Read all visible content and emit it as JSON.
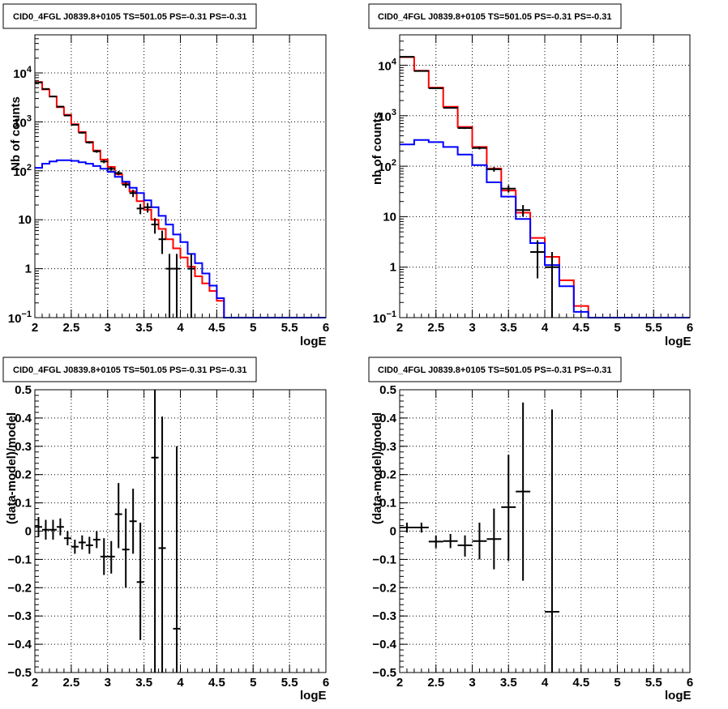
{
  "colors": {
    "data": "#000000",
    "total_model": "#ff0000",
    "background_model": "#0000ff",
    "grid": "#000000",
    "frame": "#000000"
  },
  "chart_data": [
    {
      "type": "line",
      "title": "CID0_4FGL J0839.8+0105 TS=501.05 PS=-0.31 PS=-0.31",
      "xlabel": "logE",
      "ylabel": "Nb of counts",
      "xlim": [
        2,
        6
      ],
      "ylim": [
        0.1,
        60000
      ],
      "yscale": "log",
      "grid": true,
      "x_ticks": [
        "2",
        "2.5",
        "3",
        "3.5",
        "4",
        "4.5",
        "5",
        "5.5",
        "6"
      ],
      "y_ticks": [
        {
          "value": 10000,
          "label": "10",
          "exp": "4"
        },
        {
          "value": 1000,
          "label": "10",
          "exp": "3"
        },
        {
          "value": 100,
          "label": "10",
          "exp": "2"
        },
        {
          "value": 10,
          "label": "10",
          "exp": ""
        },
        {
          "value": 1,
          "label": "1",
          "exp": ""
        },
        {
          "value": 0.1,
          "label": "10",
          "exp": "−1"
        }
      ],
      "bin_edges": [
        2.0,
        2.1,
        2.2,
        2.3,
        2.4,
        2.5,
        2.6,
        2.7,
        2.8,
        2.9,
        3.0,
        3.1,
        3.2,
        3.3,
        3.4,
        3.5,
        3.6,
        3.7,
        3.8,
        3.9,
        4.0,
        4.1,
        4.2,
        4.3,
        4.4,
        4.5,
        4.6,
        4.7,
        4.8,
        4.9,
        5.0,
        5.1,
        5.2,
        5.3,
        5.4,
        5.5,
        5.6,
        5.7,
        5.8,
        5.9,
        6.0
      ],
      "series": [
        {
          "name": "total_model",
          "kind": "step",
          "values": [
            6500,
            4600,
            3300,
            2000,
            1400,
            900,
            620,
            390,
            260,
            170,
            120,
            85,
            55,
            38,
            24,
            16,
            10,
            6.5,
            4,
            2.6,
            1.7,
            1.1,
            0.7,
            0.5,
            0.35,
            0.22,
            0.1,
            0.1,
            0.1,
            0.1,
            0.1,
            0.1,
            0.1,
            0.1,
            0.1,
            0.1,
            0.1,
            0.1,
            0.1,
            0.1
          ]
        },
        {
          "name": "background_model",
          "kind": "step",
          "values": [
            115,
            140,
            155,
            165,
            165,
            160,
            150,
            140,
            125,
            110,
            95,
            75,
            60,
            45,
            35,
            25,
            18,
            12,
            8,
            5,
            3.5,
            2,
            1.3,
            0.8,
            0.45,
            0.25,
            0.1,
            0.1,
            0.1,
            0.1,
            0.1,
            0.1,
            0.1,
            0.1,
            0.1,
            0.1,
            0.1,
            0.1,
            0.1,
            0.1
          ]
        },
        {
          "name": "data",
          "kind": "errorbar",
          "xerr": 0.05,
          "points": [
            {
              "x": 2.05,
              "y": 6400,
              "lo": 6320,
              "hi": 6480
            },
            {
              "x": 2.15,
              "y": 4700,
              "lo": 4630,
              "hi": 4770
            },
            {
              "x": 2.25,
              "y": 3300,
              "lo": 3240,
              "hi": 3360
            },
            {
              "x": 2.35,
              "y": 2050,
              "lo": 2000,
              "hi": 2100
            },
            {
              "x": 2.45,
              "y": 1350,
              "lo": 1310,
              "hi": 1390
            },
            {
              "x": 2.55,
              "y": 870,
              "lo": 840,
              "hi": 900
            },
            {
              "x": 2.65,
              "y": 600,
              "lo": 575,
              "hi": 625
            },
            {
              "x": 2.75,
              "y": 380,
              "lo": 360,
              "hi": 400
            },
            {
              "x": 2.85,
              "y": 250,
              "lo": 234,
              "hi": 266
            },
            {
              "x": 2.95,
              "y": 155,
              "lo": 143,
              "hi": 167
            },
            {
              "x": 3.05,
              "y": 110,
              "lo": 100,
              "hi": 120
            },
            {
              "x": 3.15,
              "y": 90,
              "lo": 81,
              "hi": 99
            },
            {
              "x": 3.25,
              "y": 52,
              "lo": 45,
              "hi": 59
            },
            {
              "x": 3.35,
              "y": 35,
              "lo": 29,
              "hi": 41
            },
            {
              "x": 3.45,
              "y": 17,
              "lo": 13,
              "hi": 21
            },
            {
              "x": 3.55,
              "y": 18,
              "lo": 14,
              "hi": 22
            },
            {
              "x": 3.65,
              "y": 8,
              "lo": 5.2,
              "hi": 10.8
            },
            {
              "x": 3.75,
              "y": 4,
              "lo": 2,
              "hi": 6
            },
            {
              "x": 3.85,
              "y": 1,
              "lo": 0.1,
              "hi": 2
            },
            {
              "x": 3.95,
              "y": 1,
              "lo": 0.1,
              "hi": 2
            },
            {
              "x": 4.15,
              "y": 1,
              "lo": 0.1,
              "hi": 2
            }
          ]
        }
      ]
    },
    {
      "type": "line",
      "title": "CID0_4FGL J0839.8+0105 TS=501.05 PS=-0.31 PS=-0.31",
      "xlabel": "logE",
      "ylabel": "nb of counts",
      "xlim": [
        2,
        6
      ],
      "ylim": [
        0.1,
        40000
      ],
      "yscale": "log",
      "grid": true,
      "x_ticks": [
        "2",
        "2.5",
        "3",
        "3.5",
        "4",
        "4.5",
        "5",
        "5.5",
        "6"
      ],
      "y_ticks": [
        {
          "value": 10000,
          "label": "10",
          "exp": "4"
        },
        {
          "value": 1000,
          "label": "10",
          "exp": "3"
        },
        {
          "value": 100,
          "label": "10",
          "exp": "2"
        },
        {
          "value": 10,
          "label": "10",
          "exp": ""
        },
        {
          "value": 1,
          "label": "1",
          "exp": ""
        },
        {
          "value": 0.1,
          "label": "10",
          "exp": "−1"
        }
      ],
      "bin_edges": [
        2.0,
        2.2,
        2.4,
        2.6,
        2.8,
        3.0,
        3.2,
        3.4,
        3.6,
        3.8,
        4.0,
        4.2,
        4.4,
        4.6,
        4.8,
        5.0,
        5.2,
        5.4,
        5.6,
        5.8,
        6.0
      ],
      "series": [
        {
          "name": "total_model",
          "kind": "step",
          "values": [
            14500,
            7800,
            3600,
            1500,
            600,
            240,
            90,
            33,
            12,
            3.8,
            1.6,
            0.55,
            0.17,
            0.1,
            0.1,
            0.1,
            0.1,
            0.1,
            0.1,
            0.1
          ]
        },
        {
          "name": "background_model",
          "kind": "step",
          "values": [
            270,
            330,
            300,
            240,
            170,
            105,
            48,
            25,
            9,
            3,
            1.1,
            0.42,
            0.13,
            0.1,
            0.1,
            0.1,
            0.1,
            0.1,
            0.1,
            0.1
          ]
        },
        {
          "name": "data",
          "kind": "errorbar",
          "xerr": 0.1,
          "points": [
            {
              "x": 2.1,
              "y": 14700,
              "lo": 14550,
              "hi": 14850
            },
            {
              "x": 2.3,
              "y": 7700,
              "lo": 7610,
              "hi": 7790
            },
            {
              "x": 2.5,
              "y": 3500,
              "lo": 3440,
              "hi": 3560
            },
            {
              "x": 2.7,
              "y": 1430,
              "lo": 1390,
              "hi": 1470
            },
            {
              "x": 2.9,
              "y": 570,
              "lo": 546,
              "hi": 594
            },
            {
              "x": 3.1,
              "y": 230,
              "lo": 215,
              "hi": 245
            },
            {
              "x": 3.3,
              "y": 87,
              "lo": 78,
              "hi": 96
            },
            {
              "x": 3.5,
              "y": 36,
              "lo": 30,
              "hi": 42
            },
            {
              "x": 3.7,
              "y": 13.5,
              "lo": 10,
              "hi": 17
            },
            {
              "x": 3.9,
              "y": 2,
              "lo": 0.6,
              "hi": 3.4
            },
            {
              "x": 4.1,
              "y": 1,
              "lo": 0.1,
              "hi": 2
            }
          ]
        }
      ]
    },
    {
      "type": "scatter",
      "title": "CID0_4FGL J0839.8+0105 TS=501.05 PS=-0.31 PS=-0.31",
      "xlabel": "logE",
      "ylabel": "(data-model)/model",
      "xlim": [
        2,
        6
      ],
      "ylim": [
        -0.5,
        0.5
      ],
      "grid": true,
      "x_ticks": [
        "2",
        "2.5",
        "3",
        "3.5",
        "4",
        "4.5",
        "5",
        "5.5",
        "6"
      ],
      "y_ticks": [
        {
          "value": 0.5,
          "label": "0.5"
        },
        {
          "value": 0.4,
          "label": "0.4"
        },
        {
          "value": 0.3,
          "label": "0.3"
        },
        {
          "value": 0.2,
          "label": "0.2"
        },
        {
          "value": 0.1,
          "label": "0.1"
        },
        {
          "value": 0,
          "label": "0"
        },
        {
          "value": -0.1,
          "label": "−0.1"
        },
        {
          "value": -0.2,
          "label": "−0.2"
        },
        {
          "value": -0.3,
          "label": "−0.3"
        },
        {
          "value": -0.4,
          "label": "−0.4"
        },
        {
          "value": -0.5,
          "label": "−0.5"
        }
      ],
      "series": [
        {
          "name": "residuals",
          "kind": "errorbar",
          "xerr": 0.05,
          "points": [
            {
              "x": 2.05,
              "y": 0.015,
              "lo": -0.02,
              "hi": 0.05
            },
            {
              "x": 2.15,
              "y": 0.005,
              "lo": -0.03,
              "hi": 0.04
            },
            {
              "x": 2.25,
              "y": 0.005,
              "lo": -0.03,
              "hi": 0.04
            },
            {
              "x": 2.35,
              "y": 0.015,
              "lo": -0.015,
              "hi": 0.045
            },
            {
              "x": 2.45,
              "y": -0.025,
              "lo": -0.05,
              "hi": 0.0
            },
            {
              "x": 2.55,
              "y": -0.055,
              "lo": -0.08,
              "hi": -0.03
            },
            {
              "x": 2.65,
              "y": -0.04,
              "lo": -0.065,
              "hi": -0.015
            },
            {
              "x": 2.75,
              "y": -0.05,
              "lo": -0.08,
              "hi": -0.02
            },
            {
              "x": 2.85,
              "y": -0.03,
              "lo": -0.06,
              "hi": 0.0
            },
            {
              "x": 2.95,
              "y": -0.09,
              "lo": -0.155,
              "hi": -0.025
            },
            {
              "x": 3.05,
              "y": -0.09,
              "lo": -0.15,
              "hi": -0.035
            },
            {
              "x": 3.15,
              "y": 0.06,
              "lo": -0.06,
              "hi": 0.17
            },
            {
              "x": 3.25,
              "y": -0.065,
              "lo": -0.2,
              "hi": 0.08
            },
            {
              "x": 3.35,
              "y": 0.035,
              "lo": -0.08,
              "hi": 0.15
            },
            {
              "x": 3.45,
              "y": -0.18,
              "lo": -0.385,
              "hi": 0.03
            },
            {
              "x": 3.65,
              "y": 0.26,
              "lo": -0.5,
              "hi": 0.5
            },
            {
              "x": 3.75,
              "y": -0.06,
              "lo": -0.5,
              "hi": 0.405
            },
            {
              "x": 3.95,
              "y": -0.345,
              "lo": -0.5,
              "hi": 0.3
            }
          ]
        }
      ]
    },
    {
      "type": "scatter",
      "title": "CID0_4FGL J0839.8+0105 TS=501.05 PS=-0.31 PS=-0.31",
      "xlabel": "logE",
      "ylabel": "(data-model)/model",
      "xlim": [
        2,
        6
      ],
      "ylim": [
        -0.5,
        0.5
      ],
      "grid": true,
      "x_ticks": [
        "2",
        "2.5",
        "3",
        "3.5",
        "4",
        "4.5",
        "5",
        "5.5",
        "6"
      ],
      "y_ticks": [
        {
          "value": 0.5,
          "label": "0.5"
        },
        {
          "value": 0.4,
          "label": "0.4"
        },
        {
          "value": 0.3,
          "label": "0.3"
        },
        {
          "value": 0.2,
          "label": "0.2"
        },
        {
          "value": 0.1,
          "label": "0.1"
        },
        {
          "value": 0,
          "label": "0"
        },
        {
          "value": -0.1,
          "label": "−0.1"
        },
        {
          "value": -0.2,
          "label": "−0.2"
        },
        {
          "value": -0.3,
          "label": "−0.3"
        },
        {
          "value": -0.4,
          "label": "−0.4"
        },
        {
          "value": -0.5,
          "label": "−0.5"
        }
      ],
      "series": [
        {
          "name": "residuals",
          "kind": "errorbar",
          "xerr": 0.1,
          "points": [
            {
              "x": 2.1,
              "y": 0.013,
              "lo": -0.005,
              "hi": 0.03
            },
            {
              "x": 2.3,
              "y": 0.013,
              "lo": -0.005,
              "hi": 0.03
            },
            {
              "x": 2.5,
              "y": -0.037,
              "lo": -0.06,
              "hi": -0.015
            },
            {
              "x": 2.7,
              "y": -0.035,
              "lo": -0.06,
              "hi": -0.01
            },
            {
              "x": 2.9,
              "y": -0.05,
              "lo": -0.09,
              "hi": -0.015
            },
            {
              "x": 3.1,
              "y": -0.035,
              "lo": -0.1,
              "hi": 0.03
            },
            {
              "x": 3.3,
              "y": -0.028,
              "lo": -0.135,
              "hi": 0.08
            },
            {
              "x": 3.5,
              "y": 0.085,
              "lo": -0.105,
              "hi": 0.27
            },
            {
              "x": 3.7,
              "y": 0.14,
              "lo": -0.175,
              "hi": 0.455
            },
            {
              "x": 4.1,
              "y": -0.285,
              "lo": -0.5,
              "hi": 0.43
            }
          ]
        }
      ]
    }
  ]
}
